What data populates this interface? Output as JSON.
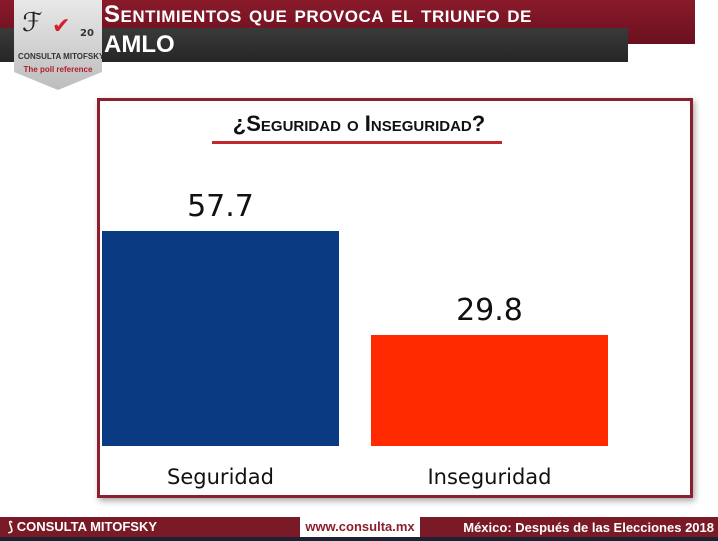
{
  "header": {
    "title_line1": "Sentimientos que provoca el triunfo de",
    "title_line2": "AMLO"
  },
  "logo": {
    "name": "CONSULTA MITOFSKY",
    "tagline": "The poll reference",
    "badge": "20"
  },
  "chart_data": {
    "type": "bar",
    "title": "¿Seguridad o Inseguridad?",
    "categories": [
      "Seguridad",
      "Inseguridad"
    ],
    "values": [
      57.7,
      29.8
    ],
    "colors": [
      "#0a3a82",
      "#ff2a00"
    ],
    "ylim": [
      0,
      60
    ],
    "grid": false
  },
  "footer": {
    "brand": "CONSULTA MITOFSKY",
    "url": "www.consulta.mx",
    "caption": "México: Después de las Elecciones 2018"
  }
}
